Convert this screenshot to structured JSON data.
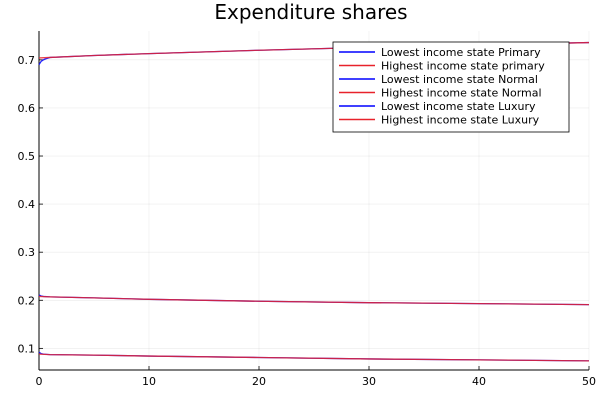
{
  "chart_data": {
    "type": "line",
    "title": "Expenditure shares",
    "xlabel": "",
    "ylabel": "",
    "xlim": [
      0,
      50
    ],
    "ylim": [
      0.055,
      0.76
    ],
    "x_ticks": [
      0,
      10,
      20,
      30,
      40,
      50
    ],
    "y_ticks": [
      0.1,
      0.2,
      0.3,
      0.4,
      0.5,
      0.6,
      0.7
    ],
    "x_tick_labels": [
      "0",
      "10",
      "20",
      "30",
      "40",
      "50"
    ],
    "y_tick_labels": [
      "0.1",
      "0.2",
      "0.3",
      "0.4",
      "0.5",
      "0.6",
      "0.7"
    ],
    "grid": true,
    "legend_position": "top-right",
    "series": [
      {
        "name": "Lowest income state Primary",
        "color": "#0000ff",
        "x": [
          0,
          0.2,
          0.4,
          0.6,
          1,
          5,
          10,
          20,
          30,
          40,
          50
        ],
        "y": [
          0.69,
          0.697,
          0.7,
          0.702,
          0.705,
          0.709,
          0.713,
          0.72,
          0.726,
          0.731,
          0.736
        ]
      },
      {
        "name": "Highest income state primary",
        "color": "#e8222b",
        "x": [
          0,
          1,
          5,
          10,
          20,
          30,
          40,
          50
        ],
        "y": [
          0.704,
          0.705,
          0.709,
          0.713,
          0.72,
          0.726,
          0.731,
          0.736
        ]
      },
      {
        "name": "Lowest income state Normal",
        "color": "#0000ff",
        "x": [
          0,
          0.2,
          0.4,
          1,
          5,
          10,
          20,
          30,
          40,
          50
        ],
        "y": [
          0.211,
          0.209,
          0.208,
          0.207,
          0.205,
          0.202,
          0.198,
          0.195,
          0.193,
          0.191
        ]
      },
      {
        "name": "Highest income state Normal",
        "color": "#e8222b",
        "x": [
          0,
          1,
          5,
          10,
          20,
          30,
          40,
          50
        ],
        "y": [
          0.208,
          0.207,
          0.205,
          0.202,
          0.198,
          0.195,
          0.193,
          0.191
        ]
      },
      {
        "name": "Lowest income state Luxury",
        "color": "#0000ff",
        "x": [
          0,
          0.2,
          0.4,
          1,
          5,
          10,
          20,
          30,
          40,
          50
        ],
        "y": [
          0.092,
          0.089,
          0.088,
          0.087,
          0.086,
          0.084,
          0.081,
          0.078,
          0.076,
          0.074
        ]
      },
      {
        "name": "Highest income state Luxury",
        "color": "#e8222b",
        "x": [
          0,
          1,
          5,
          10,
          20,
          30,
          40,
          50
        ],
        "y": [
          0.088,
          0.087,
          0.086,
          0.084,
          0.081,
          0.078,
          0.076,
          0.074
        ]
      }
    ]
  }
}
